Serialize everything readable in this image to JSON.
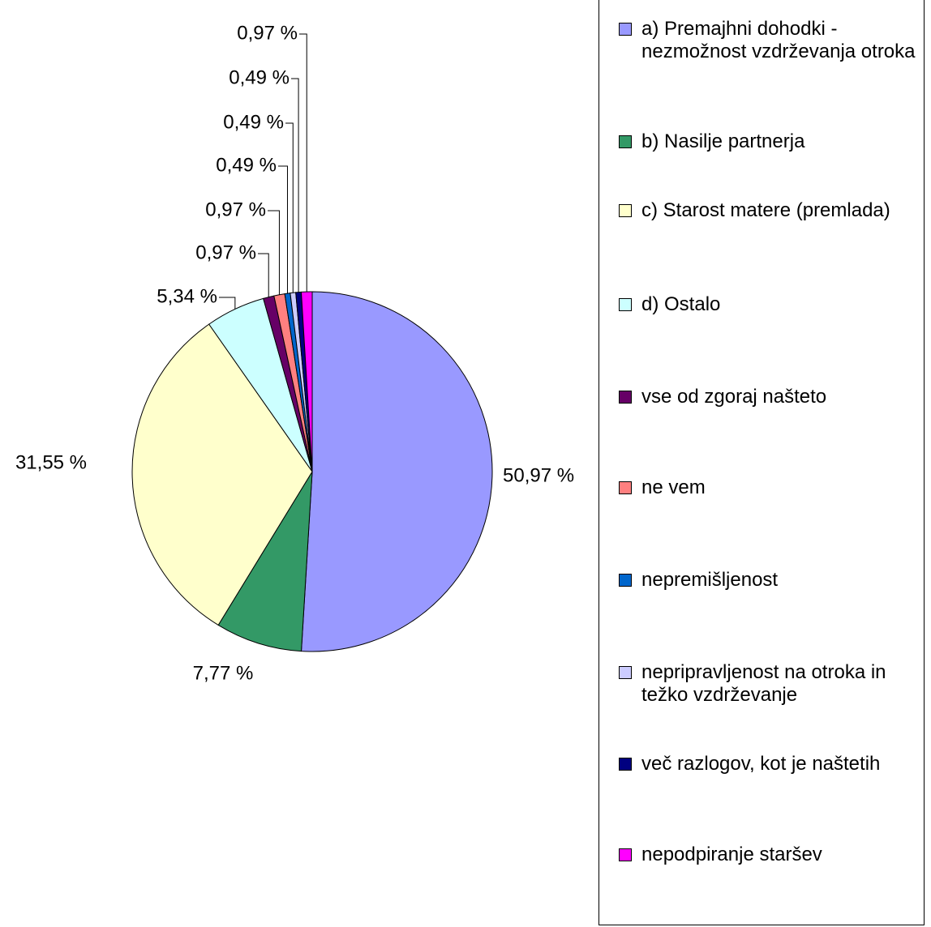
{
  "chart_data": {
    "type": "pie",
    "categories": [
      "a) Premajhni dohodki - nezmožnost vzdrževanja otroka",
      "b) Nasilje partnerja",
      "c) Starost matere (premlada)",
      "d) Ostalo",
      "vse od zgoraj našteto",
      "ne vem",
      "nepremišljenost",
      "nepripravljenost na otroka in težko vzdrževanje",
      "več razlogov, kot je naštetih",
      "nepodpiranje staršev"
    ],
    "values": [
      50.97,
      7.77,
      31.55,
      5.34,
      0.97,
      0.97,
      0.49,
      0.49,
      0.49,
      0.97
    ],
    "value_labels": [
      "50,97 %",
      "7,77 %",
      "31,55 %",
      "5,34 %",
      "0,97 %",
      "0,97 %",
      "0,49 %",
      "0,49 %",
      "0,49 %",
      "0,97 %"
    ],
    "colors": [
      "#9999ff",
      "#339966",
      "#ffffcc",
      "#ccffff",
      "#660066",
      "#ff8080",
      "#0066cc",
      "#ccccff",
      "#000080",
      "#ff00ff"
    ],
    "legend": "right"
  }
}
